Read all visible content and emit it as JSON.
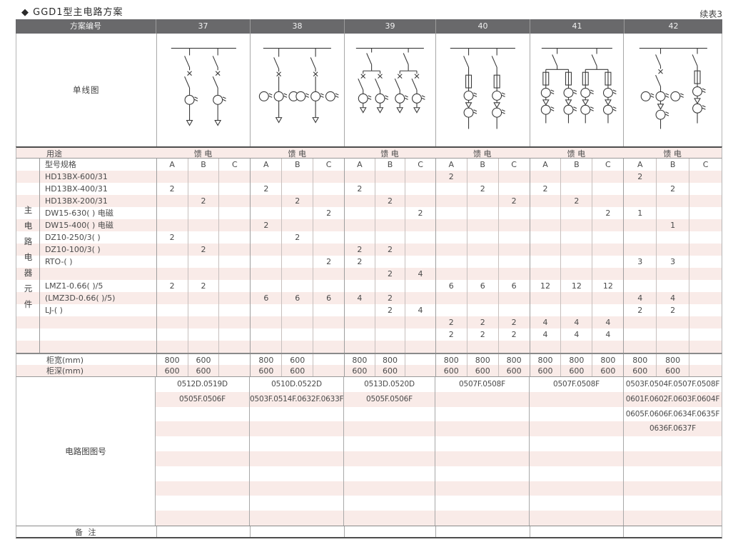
{
  "page": {
    "title": "◆ GGD1型主电路方案",
    "continuation": "续表3"
  },
  "colors": {
    "header_bg": "#69696b",
    "stripe_pink": "#f9ebe8",
    "rule_dark": "#4d4d4d",
    "text": "#4a4a4a"
  },
  "table": {
    "header": {
      "label": "方案编号",
      "schemes": [
        "37",
        "38",
        "39",
        "40",
        "41",
        "42"
      ]
    },
    "diagram_row_label": "单线图",
    "usage_row": {
      "label": "用途",
      "values": [
        "馈 电",
        "馈 电",
        "馈 电",
        "馈 电",
        "馈 电",
        "馈 电"
      ]
    },
    "spec_header": {
      "label": "型号规格",
      "subcolumns": [
        "A",
        "B",
        "C"
      ]
    },
    "side_label": "主电路电器元件",
    "component_rows": [
      {
        "label": "HD13BX-600/31",
        "values": [
          "",
          "",
          "",
          "",
          "",
          "",
          "",
          "",
          "",
          "2",
          "",
          "",
          "",
          "",
          "",
          "2",
          "",
          ""
        ]
      },
      {
        "label": "HD13BX-400/31",
        "values": [
          "2",
          "",
          "",
          "2",
          "",
          "",
          "2",
          "",
          "",
          "",
          "2",
          "",
          "2",
          "",
          "",
          "",
          "2",
          ""
        ]
      },
      {
        "label": "HD13BX-200/31",
        "values": [
          "",
          "2",
          "",
          "",
          "2",
          "",
          "",
          "2",
          "",
          "",
          "",
          "2",
          "",
          "2",
          "",
          "",
          "",
          ""
        ]
      },
      {
        "label": "DW15-630( )  电磁",
        "values": [
          "",
          "",
          "",
          "",
          "",
          "2",
          "",
          "",
          "2",
          "",
          "",
          "",
          "",
          "",
          "2",
          "1",
          "",
          ""
        ]
      },
      {
        "label": "DW15-400( )  电磁",
        "values": [
          "",
          "",
          "",
          "2",
          "",
          "",
          "",
          "",
          "",
          "",
          "",
          "",
          "",
          "",
          "",
          "",
          "1",
          ""
        ]
      },
      {
        "label": "DZ10-250/3( )",
        "values": [
          "2",
          "",
          "",
          "",
          "2",
          "",
          "",
          "",
          "",
          "",
          "",
          "",
          "",
          "",
          "",
          "",
          "",
          ""
        ]
      },
      {
        "label": "DZ10-100/3( )",
        "values": [
          "",
          "2",
          "",
          "",
          "",
          "",
          "2",
          "2",
          "",
          "",
          "",
          "",
          "",
          "",
          "",
          "",
          "",
          ""
        ]
      },
      {
        "label": "RTO-( )",
        "values": [
          "",
          "",
          "",
          "",
          "",
          "2",
          "2",
          "",
          "",
          "",
          "",
          "",
          "",
          "",
          "",
          "3",
          "3",
          ""
        ]
      },
      {
        "label": "",
        "values": [
          "",
          "",
          "",
          "",
          "",
          "",
          "",
          "2",
          "4",
          "",
          "",
          "",
          "",
          "",
          "",
          "",
          "",
          ""
        ]
      },
      {
        "label": "LMZ1-0.66( )/5",
        "values": [
          "2",
          "2",
          "",
          "",
          "",
          "",
          "",
          "",
          "",
          "6",
          "6",
          "6",
          "12",
          "12",
          "12",
          "",
          "",
          ""
        ]
      },
      {
        "label": "(LMZ3D-0.66( )/5)",
        "values": [
          "",
          "",
          "",
          "6",
          "6",
          "6",
          "4",
          "2",
          "",
          "",
          "",
          "",
          "",
          "",
          "",
          "4",
          "4",
          ""
        ]
      },
      {
        "label": "LJ-( )",
        "values": [
          "",
          "",
          "",
          "",
          "",
          "",
          "",
          "2",
          "4",
          "",
          "",
          "",
          "",
          "",
          "",
          "2",
          "2",
          ""
        ]
      },
      {
        "label": "",
        "values": [
          "",
          "",
          "",
          "",
          "",
          "",
          "",
          "",
          "",
          "2",
          "2",
          "2",
          "4",
          "4",
          "4",
          "",
          "",
          ""
        ]
      },
      {
        "label": "",
        "values": [
          "",
          "",
          "",
          "",
          "",
          "",
          "",
          "",
          "",
          "2",
          "2",
          "2",
          "4",
          "4",
          "4",
          "",
          "",
          ""
        ]
      },
      {
        "label": "",
        "values": [
          "",
          "",
          "",
          "",
          "",
          "",
          "",
          "",
          "",
          "",
          "",
          "",
          "",
          "",
          "",
          "",
          "",
          ""
        ]
      }
    ],
    "width_row": {
      "label": "柜宽(mm)",
      "values": [
        "800",
        "600",
        "",
        "800",
        "600",
        "",
        "800",
        "800",
        "",
        "800",
        "800",
        "800",
        "800",
        "800",
        "800",
        "800",
        "800",
        ""
      ]
    },
    "depth_row": {
      "label": "柜深(mm)",
      "values": [
        "600",
        "600",
        "",
        "600",
        "600",
        "",
        "600",
        "600",
        "",
        "600",
        "600",
        "600",
        "600",
        "600",
        "600",
        "600",
        "600",
        ""
      ]
    },
    "drawing_section": {
      "label": "电路图图号",
      "rows": [
        [
          "0512D.0519D",
          "0510D.0522D",
          "0513D.0520D",
          "0507F.0508F",
          "0507F.0508F",
          "0503F.0504F.0507F.0508F"
        ],
        [
          "0505F.0506F",
          "0503F.0514F.0632F.0633F",
          "0505F.0506F",
          "",
          "",
          "0601F.0602F.0603F.0604F"
        ],
        [
          "",
          "",
          "",
          "",
          "",
          "0605F.0606F.0634F.0635F"
        ],
        [
          "",
          "",
          "",
          "",
          "",
          "0636F.0637F"
        ],
        [
          "",
          "",
          "",
          "",
          "",
          ""
        ],
        [
          "",
          "",
          "",
          "",
          "",
          ""
        ],
        [
          "",
          "",
          "",
          "",
          "",
          ""
        ],
        [
          "",
          "",
          "",
          "",
          "",
          ""
        ],
        [
          "",
          "",
          "",
          "",
          "",
          ""
        ],
        [
          "",
          "",
          "",
          "",
          "",
          ""
        ]
      ]
    },
    "remark_row": {
      "label": "备 注"
    }
  }
}
